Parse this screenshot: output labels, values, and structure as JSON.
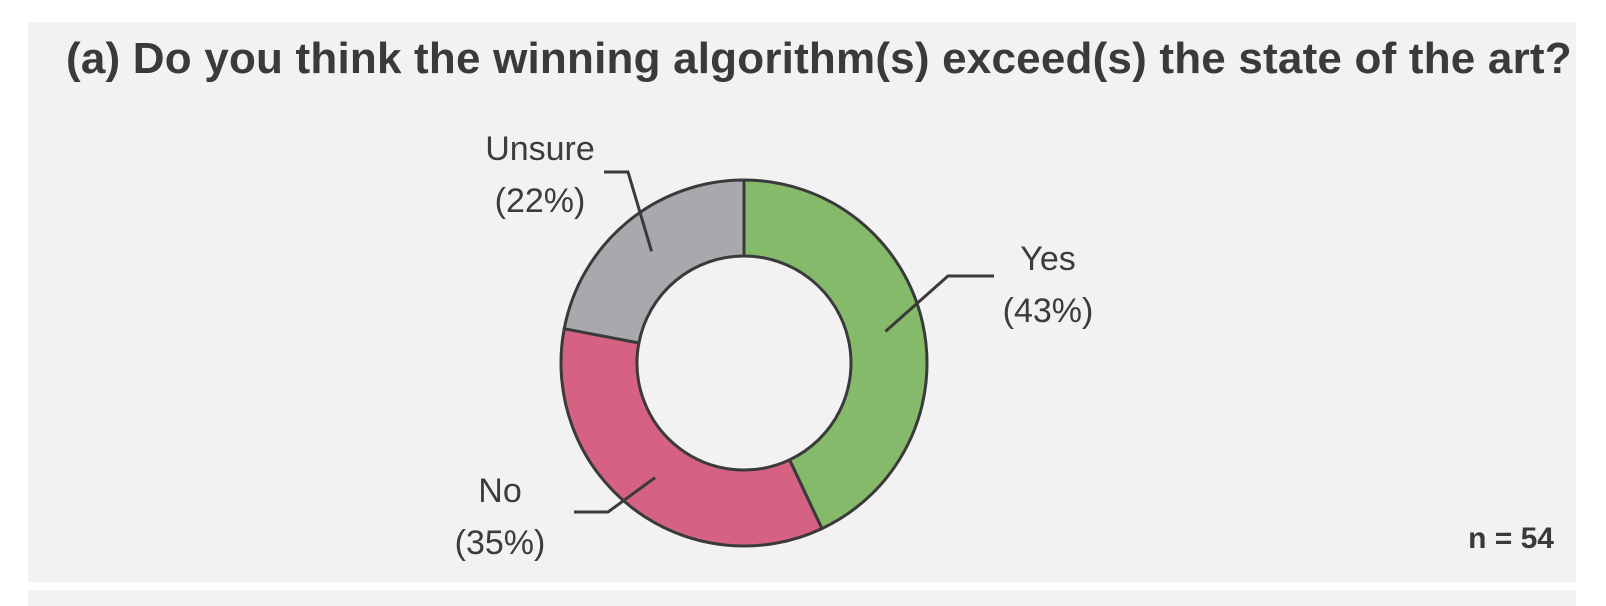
{
  "figure": {
    "title": "(a) Do you think the winning algorithm(s) exceed(s) the state of the art?",
    "note": "n = 54"
  },
  "chart_data": {
    "type": "pie",
    "variant": "donut",
    "title": "(a) Do you think the winning algorithm(s) exceed(s) the state of the art?",
    "slices": [
      {
        "label": "Yes",
        "value": 43,
        "display": "(43%)",
        "color": "#85ba6a"
      },
      {
        "label": "No",
        "value": 35,
        "display": "(35%)",
        "color": "#d66283"
      },
      {
        "label": "Unsure",
        "value": 22,
        "display": "(22%)",
        "color": "#a8a9ad"
      }
    ],
    "start": "12 o'clock",
    "direction": "clockwise",
    "n": 54,
    "legend": "none"
  }
}
